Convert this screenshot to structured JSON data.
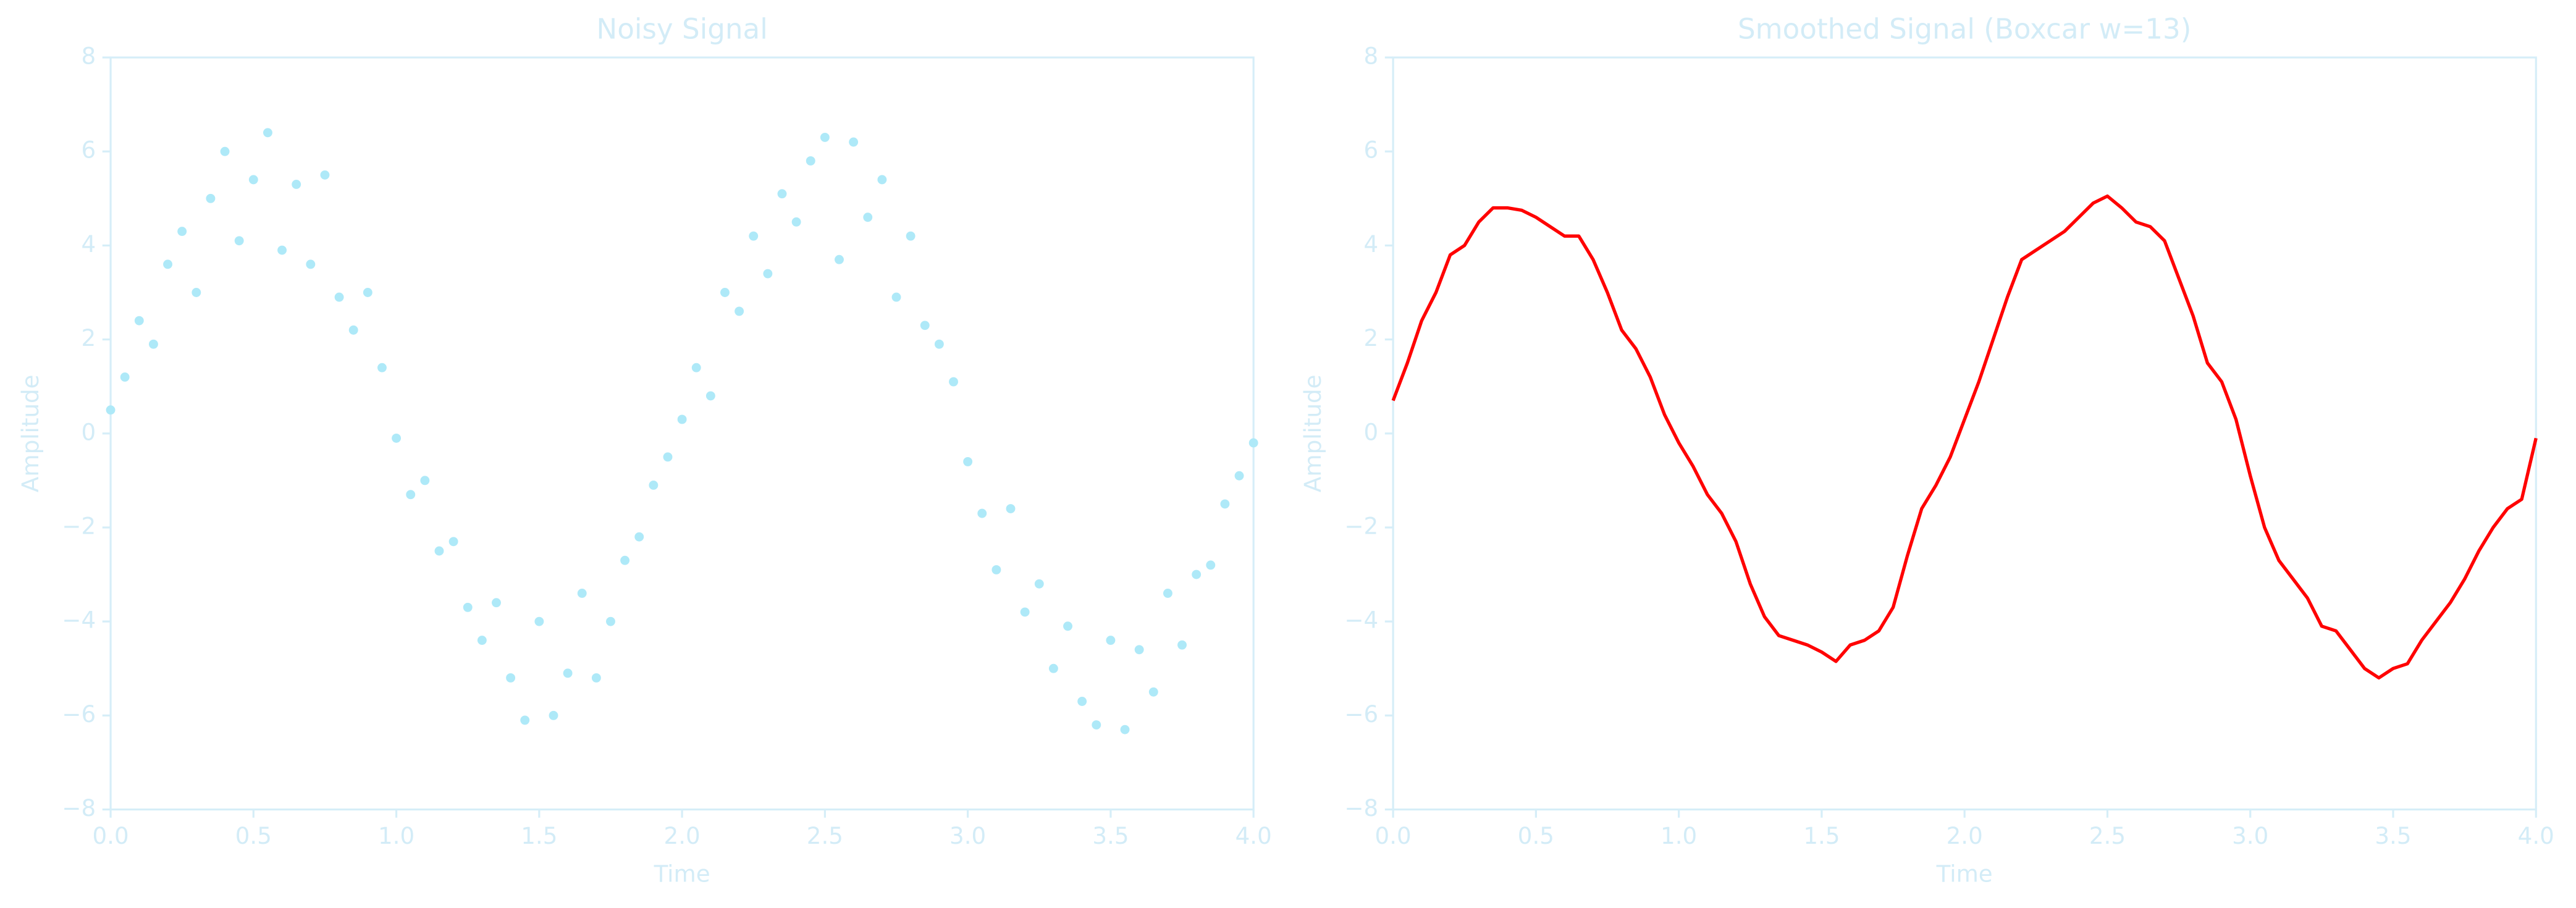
{
  "chart_data": [
    {
      "type": "scatter",
      "title": "Noisy Signal",
      "x_label": "Time",
      "y_label": "Amplitude",
      "color": "#aee9f8",
      "x": [
        0,
        0.05,
        0.1,
        0.15,
        0.2,
        0.25,
        0.3,
        0.35,
        0.4,
        0.45,
        0.5,
        0.55,
        0.6,
        0.65,
        0.7,
        0.75,
        0.8,
        0.85,
        0.9,
        0.95,
        1,
        1.05,
        1.1,
        1.15,
        1.2,
        1.25,
        1.3,
        1.35,
        1.4,
        1.45,
        1.5,
        1.55,
        1.6,
        1.65,
        1.7,
        1.75,
        1.8,
        1.85,
        1.9,
        1.95,
        2,
        2.05,
        2.1,
        2.15,
        2.2,
        2.25,
        2.3,
        2.35,
        2.4,
        2.45,
        2.5,
        2.55,
        2.6,
        2.65,
        2.7,
        2.75,
        2.8,
        2.85,
        2.9,
        2.95,
        3,
        3.05,
        3.1,
        3.15,
        3.2,
        3.25,
        3.3,
        3.35,
        3.4,
        3.45,
        3.5,
        3.55,
        3.6,
        3.65,
        3.7,
        3.75,
        3.8,
        3.85,
        3.9,
        3.95,
        4
      ],
      "values": [
        0.5,
        1.2,
        2.4,
        1.9,
        3.6,
        4.3,
        3.0,
        5.0,
        6.0,
        4.1,
        5.4,
        6.4,
        3.9,
        5.3,
        3.6,
        5.5,
        2.9,
        2.2,
        3.0,
        1.4,
        -0.1,
        -1.3,
        -1.0,
        -2.5,
        -2.3,
        -3.7,
        -4.4,
        -3.6,
        -5.2,
        -6.1,
        -4.0,
        -6.0,
        -5.1,
        -3.4,
        -5.2,
        -4.0,
        -2.7,
        -2.2,
        -1.1,
        -0.5,
        0.3,
        1.4,
        0.8,
        3.0,
        2.6,
        4.2,
        3.4,
        5.1,
        4.5,
        5.8,
        6.3,
        3.7,
        6.2,
        4.6,
        5.4,
        2.9,
        4.2,
        2.3,
        1.9,
        1.1,
        -0.6,
        -1.7,
        -2.9,
        -1.6,
        -3.8,
        -3.2,
        -5.0,
        -4.1,
        -5.7,
        -6.2,
        -4.4,
        -6.3,
        -4.6,
        -5.5,
        -3.4,
        -4.5,
        -3.0,
        -2.8,
        -1.5,
        -0.9,
        -0.2
      ],
      "xlim": [
        0,
        4
      ],
      "ylim": [
        -8,
        8
      ],
      "xticks": [
        {
          "value": 0,
          "label": "0.0"
        },
        0.5,
        {
          "value": 1,
          "label": "1.0"
        },
        1.5,
        {
          "value": 2,
          "label": "2.0"
        },
        2.5,
        {
          "value": 3,
          "label": "3.0"
        },
        3.5,
        {
          "value": 4,
          "label": "4.0"
        }
      ],
      "yticks": [
        {
          "value": -8,
          "label": "−8"
        },
        {
          "value": -6,
          "label": "−6"
        },
        {
          "value": -4,
          "label": "−4"
        },
        {
          "value": -2,
          "label": "−2"
        },
        0,
        2,
        4,
        6,
        8
      ]
    },
    {
      "type": "line",
      "title": "Smoothed Signal (Boxcar w=13)",
      "x_label": "Time",
      "y_label": "Amplitude",
      "color": "#ff0000",
      "x": [
        0,
        0.05,
        0.1,
        0.15,
        0.2,
        0.25,
        0.3,
        0.35,
        0.4,
        0.45,
        0.5,
        0.55,
        0.6,
        0.65,
        0.7,
        0.75,
        0.8,
        0.85,
        0.9,
        0.95,
        1,
        1.05,
        1.1,
        1.15,
        1.2,
        1.25,
        1.3,
        1.35,
        1.4,
        1.45,
        1.5,
        1.55,
        1.6,
        1.65,
        1.7,
        1.75,
        1.8,
        1.85,
        1.9,
        1.95,
        2,
        2.05,
        2.1,
        2.15,
        2.2,
        2.25,
        2.3,
        2.35,
        2.4,
        2.45,
        2.5,
        2.55,
        2.6,
        2.65,
        2.7,
        2.75,
        2.8,
        2.85,
        2.9,
        2.95,
        3,
        3.05,
        3.1,
        3.15,
        3.2,
        3.25,
        3.3,
        3.35,
        3.4,
        3.45,
        3.5,
        3.55,
        3.6,
        3.65,
        3.7,
        3.75,
        3.8,
        3.85,
        3.9,
        3.95,
        4
      ],
      "values": [
        0.7,
        1.5,
        2.4,
        3.0,
        3.8,
        4.0,
        4.5,
        4.8,
        4.8,
        4.75,
        4.6,
        4.4,
        4.2,
        4.2,
        3.7,
        3.0,
        2.2,
        1.8,
        1.2,
        0.4,
        -0.2,
        -0.7,
        -1.3,
        -1.7,
        -2.3,
        -3.2,
        -3.9,
        -4.3,
        -4.4,
        -4.5,
        -4.65,
        -4.85,
        -4.5,
        -4.4,
        -4.2,
        -3.7,
        -2.6,
        -1.6,
        -1.1,
        -0.5,
        0.3,
        1.1,
        2.0,
        2.9,
        3.7,
        3.9,
        4.1,
        4.3,
        4.6,
        4.9,
        5.05,
        4.8,
        4.5,
        4.4,
        4.1,
        3.3,
        2.5,
        1.5,
        1.1,
        0.3,
        -0.9,
        -2.0,
        -2.7,
        -3.1,
        -3.5,
        -4.1,
        -4.2,
        -4.6,
        -5.0,
        -5.2,
        -5.0,
        -4.9,
        -4.4,
        -4.0,
        -3.6,
        -3.1,
        -2.5,
        -2.0,
        -1.6,
        -1.4,
        -0.1
      ],
      "xlim": [
        0,
        4
      ],
      "ylim": [
        -8,
        8
      ],
      "xticks": [
        {
          "value": 0,
          "label": "0.0"
        },
        0.5,
        {
          "value": 1,
          "label": "1.0"
        },
        1.5,
        {
          "value": 2,
          "label": "2.0"
        },
        2.5,
        {
          "value": 3,
          "label": "3.0"
        },
        3.5,
        {
          "value": 4,
          "label": "4.0"
        }
      ],
      "yticks": [
        {
          "value": -8,
          "label": "−8"
        },
        {
          "value": -6,
          "label": "−6"
        },
        {
          "value": -4,
          "label": "−4"
        },
        {
          "value": -2,
          "label": "−2"
        },
        0,
        2,
        4,
        6,
        8
      ]
    }
  ]
}
